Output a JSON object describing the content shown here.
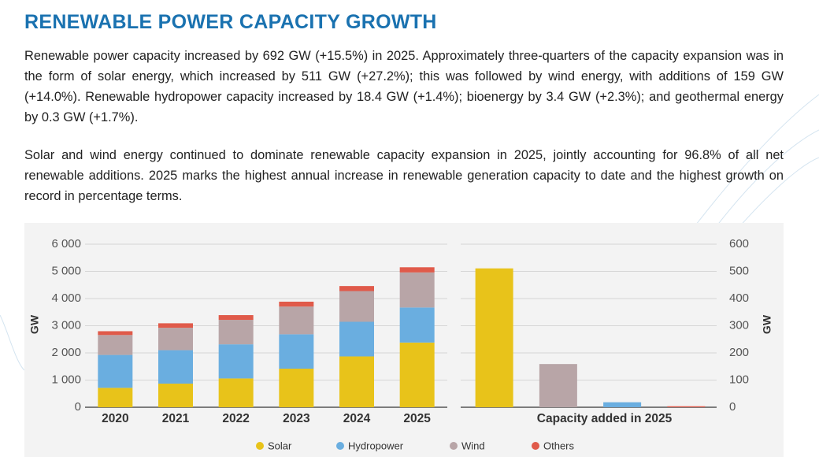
{
  "title": "RENEWABLE POWER CAPACITY GROWTH",
  "paragraphs": [
    "Renewable power capacity increased by 692 GW (+15.5%) in 2025. Approximately three-quarters of the capacity expansion was in the form of solar energy, which increased by 511 GW (+27.2%); this was followed by wind energy, with additions of 159 GW (+14.0%). Renewable hydropower capacity increased by 18.4 GW (+1.4%); bioenergy by 3.4 GW (+2.3%); and geothermal energy by 0.3 GW (+1.7%).",
    "Solar and wind energy continued to dominate renewable capacity expansion in 2025, jointly accounting for 96.8% of all net renewable additions. 2025 marks the highest annual increase in renewable generation capacity to date and the highest growth on record in percentage terms."
  ],
  "chart_data": [
    {
      "type": "stacked_bar",
      "y_label": "GW",
      "categories": [
        "2020",
        "2021",
        "2022",
        "2023",
        "2024",
        "2025"
      ],
      "series": [
        {
          "name": "Solar",
          "color": "#e8c31a",
          "values": [
            714,
            870,
            1060,
            1420,
            1870,
            2381
          ]
        },
        {
          "name": "Hydropower",
          "color": "#6aaee0",
          "values": [
            1211,
            1230,
            1255,
            1265,
            1275,
            1290
          ]
        },
        {
          "name": "Wind",
          "color": "#b8a5a7",
          "values": [
            733,
            825,
            900,
            1020,
            1130,
            1290
          ]
        },
        {
          "name": "Others",
          "color": "#e05a4a",
          "values": [
            140,
            165,
            175,
            180,
            185,
            190
          ]
        }
      ],
      "ylim": [
        0,
        6000
      ],
      "yticks": [
        0,
        {
          "value": 1000,
          "label": "1 000"
        },
        {
          "value": 2000,
          "label": "2 000"
        },
        {
          "value": 3000,
          "label": "3 000"
        },
        {
          "value": 4000,
          "label": "4 000"
        },
        {
          "value": 5000,
          "label": "5 000"
        },
        {
          "value": 6000,
          "label": "6 000"
        }
      ],
      "grid": true
    },
    {
      "type": "bar",
      "y_label": "GW",
      "x_label": "Capacity added in 2025",
      "categories": [
        null,
        null,
        null,
        null
      ],
      "values": [
        511,
        159,
        18.4,
        3.7
      ],
      "colors": [
        "#e8c31a",
        "#b8a5a7",
        "#6aaee0",
        "#e05a4a"
      ],
      "ylim": [
        0,
        600
      ],
      "yticks": [
        0,
        100,
        200,
        300,
        400,
        500,
        600
      ],
      "grid": true
    }
  ]
}
